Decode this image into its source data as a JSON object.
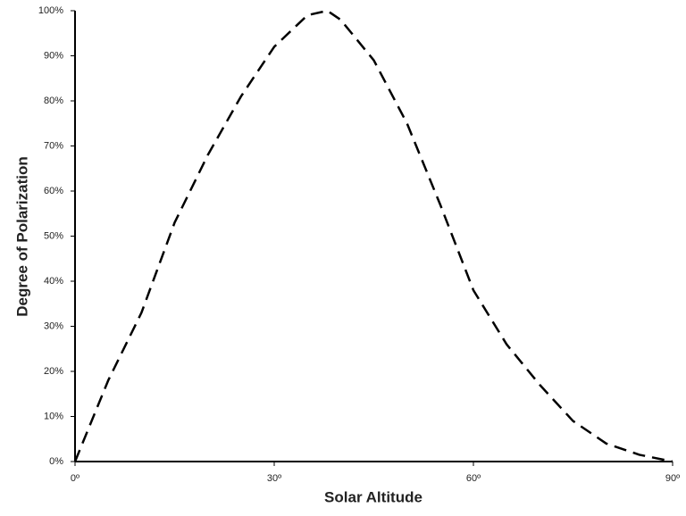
{
  "chart_data": {
    "type": "line",
    "xlabel": "Solar Altitude",
    "ylabel": "Degree of Polarization",
    "x": [
      0,
      5,
      10,
      15,
      20,
      25,
      30,
      35,
      38,
      40,
      45,
      50,
      55,
      60,
      65,
      70,
      75,
      80,
      85,
      90
    ],
    "series": [
      {
        "color": "#000000",
        "values": [
          0,
          18,
          33,
          53,
          68,
          81,
          92,
          99,
          100,
          98,
          89,
          75,
          57,
          38,
          26,
          17,
          9,
          4,
          1.5,
          0
        ]
      }
    ],
    "xlim": [
      0,
      90
    ],
    "xticks": [
      {
        "value": 0,
        "label": "0º"
      },
      {
        "value": 30,
        "label": "30º"
      },
      {
        "value": 60,
        "label": "60º"
      },
      {
        "value": 90,
        "label": "90º"
      }
    ],
    "ylim": [
      0,
      100
    ],
    "yticks": [
      {
        "value": 0,
        "label": "0%"
      },
      {
        "value": 10,
        "label": "10%"
      },
      {
        "value": 20,
        "label": "20%"
      },
      {
        "value": 30,
        "label": "30%"
      },
      {
        "value": 40,
        "label": "40%"
      },
      {
        "value": 50,
        "label": "50%"
      },
      {
        "value": 60,
        "label": "60%"
      },
      {
        "value": 70,
        "label": "70%"
      },
      {
        "value": 80,
        "label": "80%"
      },
      {
        "value": 90,
        "label": "90%"
      },
      {
        "value": 100,
        "label": "100%"
      }
    ],
    "dashed": true
  }
}
